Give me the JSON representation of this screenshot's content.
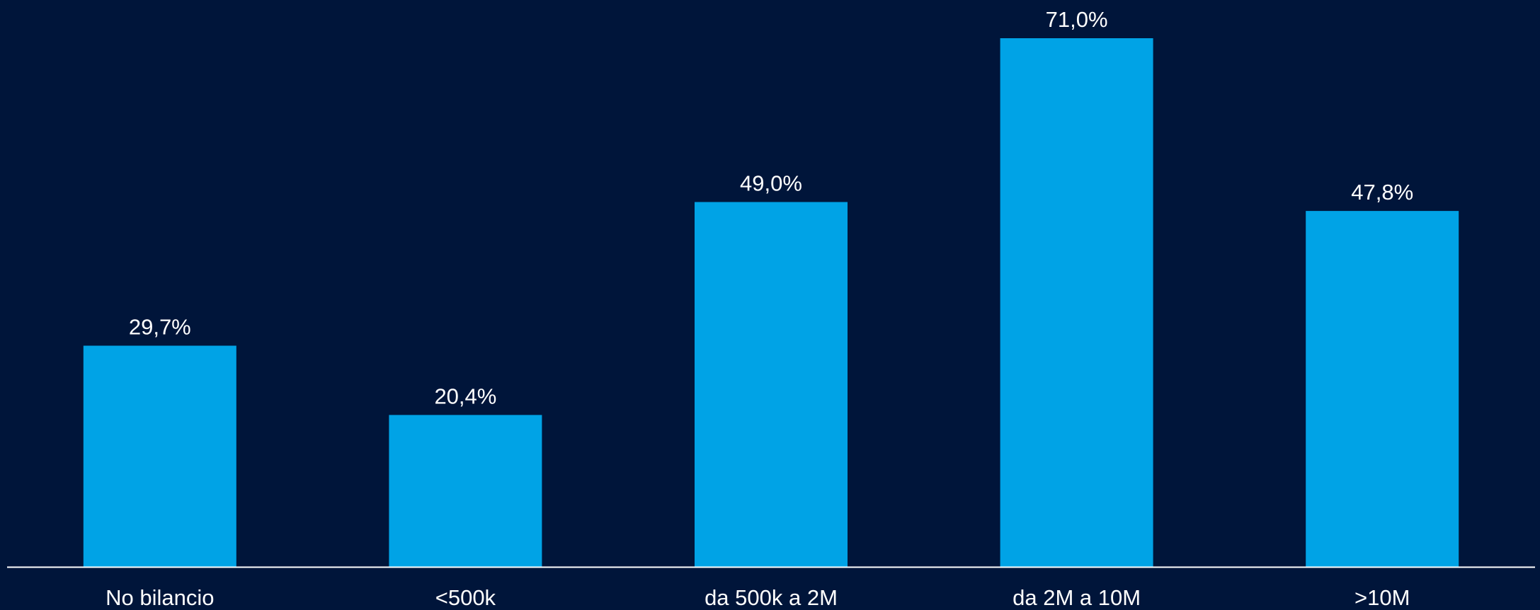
{
  "theme": {
    "background": "#00153a",
    "bar_color": "#00a3e6",
    "text_color": "#ffffff",
    "axis_color": "#ffffff"
  },
  "chart_data": {
    "type": "bar",
    "title": "",
    "xlabel": "",
    "ylabel": "",
    "categories": [
      "No bilancio",
      "<500k",
      "da 500k a 2M",
      "da 2M a 10M",
      ">10M"
    ],
    "values": [
      29.7,
      20.4,
      49.0,
      71.0,
      47.8
    ],
    "data_labels": [
      "29,7%",
      "20,4%",
      "49,0%",
      "71,0%",
      "47,8%"
    ],
    "unit": "%",
    "ylim": [
      0,
      71.0
    ],
    "grid": false,
    "legend": "none"
  }
}
